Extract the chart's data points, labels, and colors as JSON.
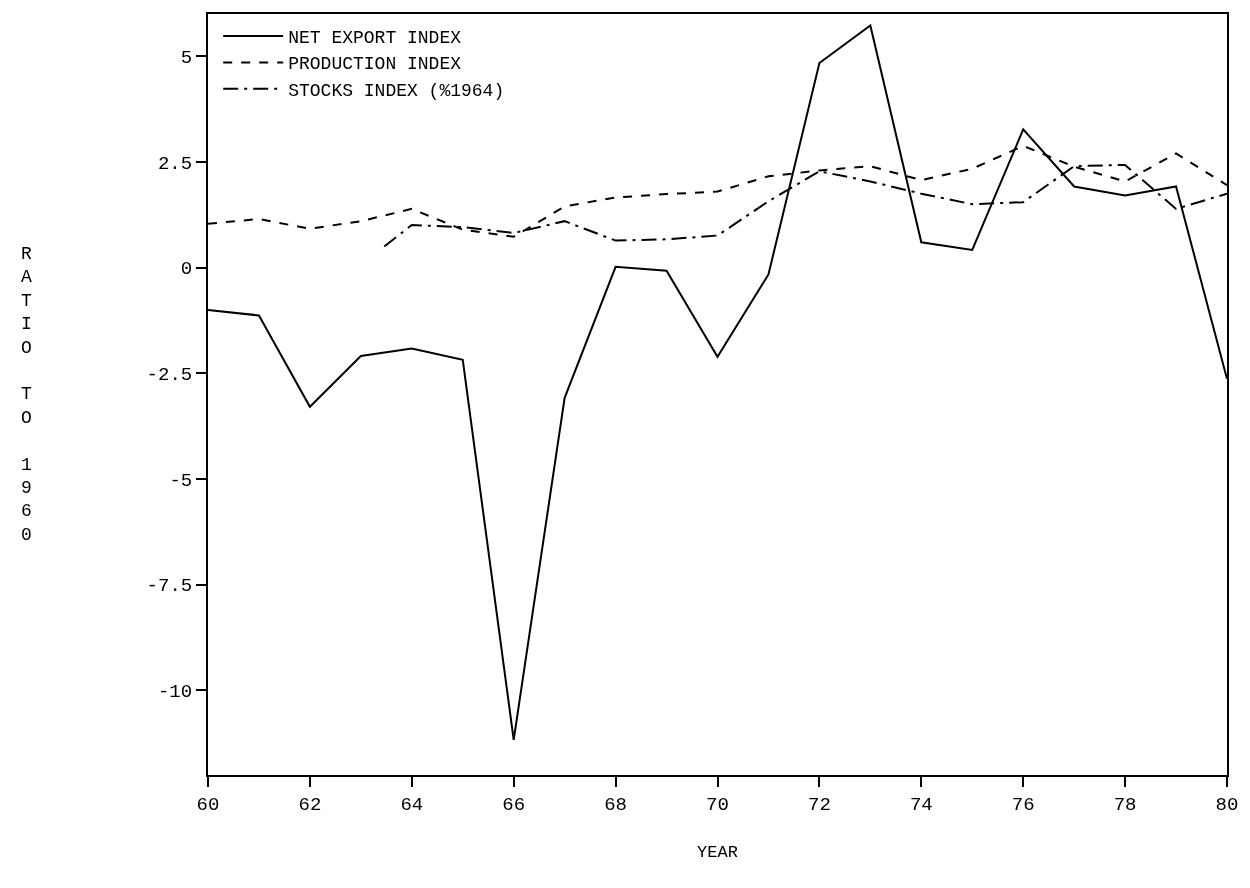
{
  "chart_data": {
    "type": "line",
    "xlabel": "YEAR",
    "ylabel": "RATIO TO 1960",
    "x": [
      60,
      61,
      62,
      63,
      64,
      65,
      66,
      67,
      68,
      69,
      70,
      71,
      72,
      73,
      74,
      75,
      76,
      77,
      78,
      79,
      80
    ],
    "series": [
      {
        "name": "NET EXPORT INDEX",
        "color": "#000000",
        "line_style": "solid",
        "values": [
          -1.0,
          -1.13,
          -3.29,
          -2.09,
          -1.91,
          -2.18,
          -11.17,
          -3.08,
          0.02,
          -0.07,
          -2.11,
          -0.16,
          4.84,
          5.73,
          0.6,
          0.42,
          3.27,
          1.92,
          1.71,
          1.92,
          -2.63
        ]
      },
      {
        "name": "PRODUCTION INDEX",
        "color": "#000000",
        "line_style": "dashed",
        "values": [
          1.04,
          1.15,
          0.92,
          1.1,
          1.39,
          0.9,
          0.73,
          1.45,
          1.66,
          1.74,
          1.8,
          2.16,
          2.3,
          2.4,
          2.07,
          2.34,
          2.88,
          2.39,
          2.04,
          2.7,
          1.95
        ]
      },
      {
        "name": "STOCKS INDEX (%1964)",
        "color": "#000000",
        "line_style": "dashdot",
        "x": [
          63.46,
          64,
          65,
          66,
          67,
          68,
          69,
          70,
          71,
          72,
          73,
          74,
          75,
          76,
          77,
          78,
          79,
          80
        ],
        "values": [
          0.5,
          1.01,
          0.96,
          0.82,
          1.1,
          0.64,
          0.67,
          0.76,
          1.57,
          2.28,
          2.04,
          1.75,
          1.5,
          1.55,
          2.4,
          2.43,
          1.39,
          1.75
        ]
      }
    ],
    "xlim": [
      60,
      80
    ],
    "xticks": [
      60,
      62,
      64,
      66,
      68,
      70,
      72,
      74,
      76,
      78,
      80
    ],
    "ylim": [
      -12,
      6
    ],
    "yticks": [
      5,
      2.5,
      0,
      -2.5,
      -5,
      -7.5,
      -10
    ],
    "grid": false,
    "legend": "top left",
    "marker": "none"
  }
}
